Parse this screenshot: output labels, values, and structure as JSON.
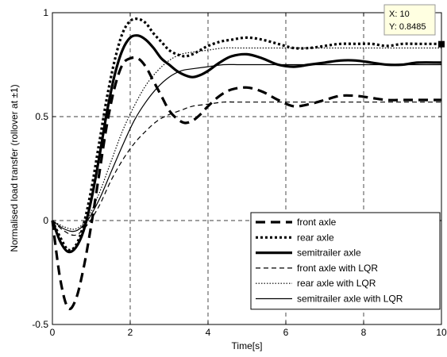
{
  "chart_data": {
    "type": "line",
    "title": "",
    "xlabel": "Time[s]",
    "ylabel": "Normalised load transfer (rollover at ±1)",
    "xlim": [
      0,
      10
    ],
    "ylim": [
      -0.5,
      1
    ],
    "xticks": [
      0,
      2,
      4,
      6,
      8,
      10
    ],
    "xtick_labels": [
      "0",
      "2",
      "4",
      "6",
      "8",
      "10"
    ],
    "yticks": [
      -0.5,
      0,
      0.5,
      1
    ],
    "ytick_labels": [
      "-0.5",
      "0",
      "0.5",
      "1"
    ],
    "grid": true,
    "legend_position": "bottom-right",
    "series": [
      {
        "name": "front axle",
        "style": "thick-dashed",
        "x": [
          0,
          0.2,
          0.4,
          0.6,
          0.8,
          1.0,
          1.2,
          1.4,
          1.6,
          1.8,
          2.0,
          2.2,
          2.4,
          2.6,
          2.8,
          3.0,
          3.2,
          3.4,
          3.6,
          3.8,
          4.0,
          4.3,
          4.6,
          5.0,
          5.4,
          5.8,
          6.2,
          6.6,
          7.0,
          7.4,
          7.8,
          8.2,
          8.6,
          9.0,
          9.4,
          10
        ],
        "y": [
          0,
          -0.28,
          -0.42,
          -0.38,
          -0.23,
          -0.02,
          0.22,
          0.46,
          0.64,
          0.75,
          0.78,
          0.78,
          0.74,
          0.67,
          0.6,
          0.53,
          0.49,
          0.47,
          0.48,
          0.51,
          0.55,
          0.6,
          0.63,
          0.64,
          0.62,
          0.58,
          0.55,
          0.56,
          0.58,
          0.6,
          0.6,
          0.59,
          0.58,
          0.58,
          0.58,
          0.58
        ]
      },
      {
        "name": "rear axle",
        "style": "thick-dotted",
        "x": [
          0,
          0.2,
          0.4,
          0.6,
          0.8,
          1.0,
          1.2,
          1.4,
          1.6,
          1.8,
          2.0,
          2.2,
          2.4,
          2.6,
          2.8,
          3.0,
          3.2,
          3.4,
          3.6,
          3.8,
          4.0,
          4.3,
          4.6,
          5.0,
          5.4,
          5.8,
          6.2,
          6.6,
          7.0,
          7.4,
          7.8,
          8.2,
          8.6,
          9.0,
          9.4,
          10
        ],
        "y": [
          0,
          -0.08,
          -0.14,
          -0.12,
          -0.02,
          0.15,
          0.37,
          0.59,
          0.77,
          0.9,
          0.96,
          0.97,
          0.95,
          0.9,
          0.86,
          0.82,
          0.8,
          0.79,
          0.8,
          0.82,
          0.84,
          0.86,
          0.87,
          0.88,
          0.87,
          0.85,
          0.83,
          0.83,
          0.84,
          0.85,
          0.85,
          0.85,
          0.84,
          0.85,
          0.85,
          0.85
        ]
      },
      {
        "name": "semitrailer axle",
        "style": "thick-solid",
        "x": [
          0,
          0.2,
          0.4,
          0.6,
          0.8,
          1.0,
          1.2,
          1.4,
          1.6,
          1.8,
          2.0,
          2.2,
          2.4,
          2.6,
          2.8,
          3.0,
          3.2,
          3.4,
          3.6,
          3.8,
          4.0,
          4.3,
          4.6,
          5.0,
          5.4,
          5.8,
          6.2,
          6.6,
          7.0,
          7.4,
          7.8,
          8.2,
          8.6,
          9.0,
          9.4,
          10
        ],
        "y": [
          0,
          -0.1,
          -0.15,
          -0.13,
          -0.05,
          0.1,
          0.3,
          0.52,
          0.7,
          0.82,
          0.88,
          0.89,
          0.87,
          0.83,
          0.78,
          0.75,
          0.72,
          0.7,
          0.69,
          0.7,
          0.72,
          0.76,
          0.79,
          0.8,
          0.78,
          0.75,
          0.74,
          0.75,
          0.76,
          0.77,
          0.77,
          0.76,
          0.75,
          0.75,
          0.76,
          0.76
        ]
      },
      {
        "name": "front axle with LQR",
        "style": "thin-dashed",
        "x": [
          0,
          0.3,
          0.6,
          0.9,
          1.2,
          1.5,
          1.8,
          2.1,
          2.4,
          2.7,
          3.0,
          3.3,
          3.6,
          4.0,
          4.4,
          4.8,
          5.2,
          5.6,
          6.0,
          7.0,
          8.0,
          9.0,
          10
        ],
        "y": [
          0,
          -0.05,
          -0.07,
          -0.02,
          0.07,
          0.19,
          0.29,
          0.37,
          0.43,
          0.48,
          0.51,
          0.53,
          0.55,
          0.56,
          0.57,
          0.57,
          0.57,
          0.57,
          0.57,
          0.57,
          0.57,
          0.57,
          0.57
        ]
      },
      {
        "name": "rear axle with LQR",
        "style": "thin-dotted",
        "x": [
          0,
          0.3,
          0.6,
          0.9,
          1.2,
          1.5,
          1.8,
          2.1,
          2.4,
          2.7,
          3.0,
          3.3,
          3.6,
          4.0,
          4.4,
          4.8,
          5.2,
          5.6,
          6.0,
          7.0,
          8.0,
          9.0,
          10
        ],
        "y": [
          0,
          -0.03,
          -0.04,
          0.01,
          0.13,
          0.28,
          0.43,
          0.55,
          0.65,
          0.72,
          0.77,
          0.8,
          0.81,
          0.82,
          0.83,
          0.83,
          0.83,
          0.83,
          0.83,
          0.83,
          0.83,
          0.83,
          0.83
        ]
      },
      {
        "name": "semitrailer axle with LQR",
        "style": "thin-solid",
        "x": [
          0,
          0.3,
          0.6,
          0.9,
          1.2,
          1.5,
          1.8,
          2.1,
          2.4,
          2.7,
          3.0,
          3.3,
          3.6,
          4.0,
          4.4,
          4.8,
          5.2,
          5.6,
          6.0,
          7.0,
          8.0,
          9.0,
          10
        ],
        "y": [
          0,
          -0.04,
          -0.05,
          0.0,
          0.1,
          0.23,
          0.36,
          0.48,
          0.57,
          0.64,
          0.69,
          0.72,
          0.73,
          0.74,
          0.75,
          0.75,
          0.75,
          0.75,
          0.75,
          0.75,
          0.75,
          0.75,
          0.75
        ]
      }
    ],
    "datatip": {
      "x_label": "X: 10",
      "y_label": "Y: 0.8485",
      "x": 10,
      "y": 0.8485
    }
  }
}
